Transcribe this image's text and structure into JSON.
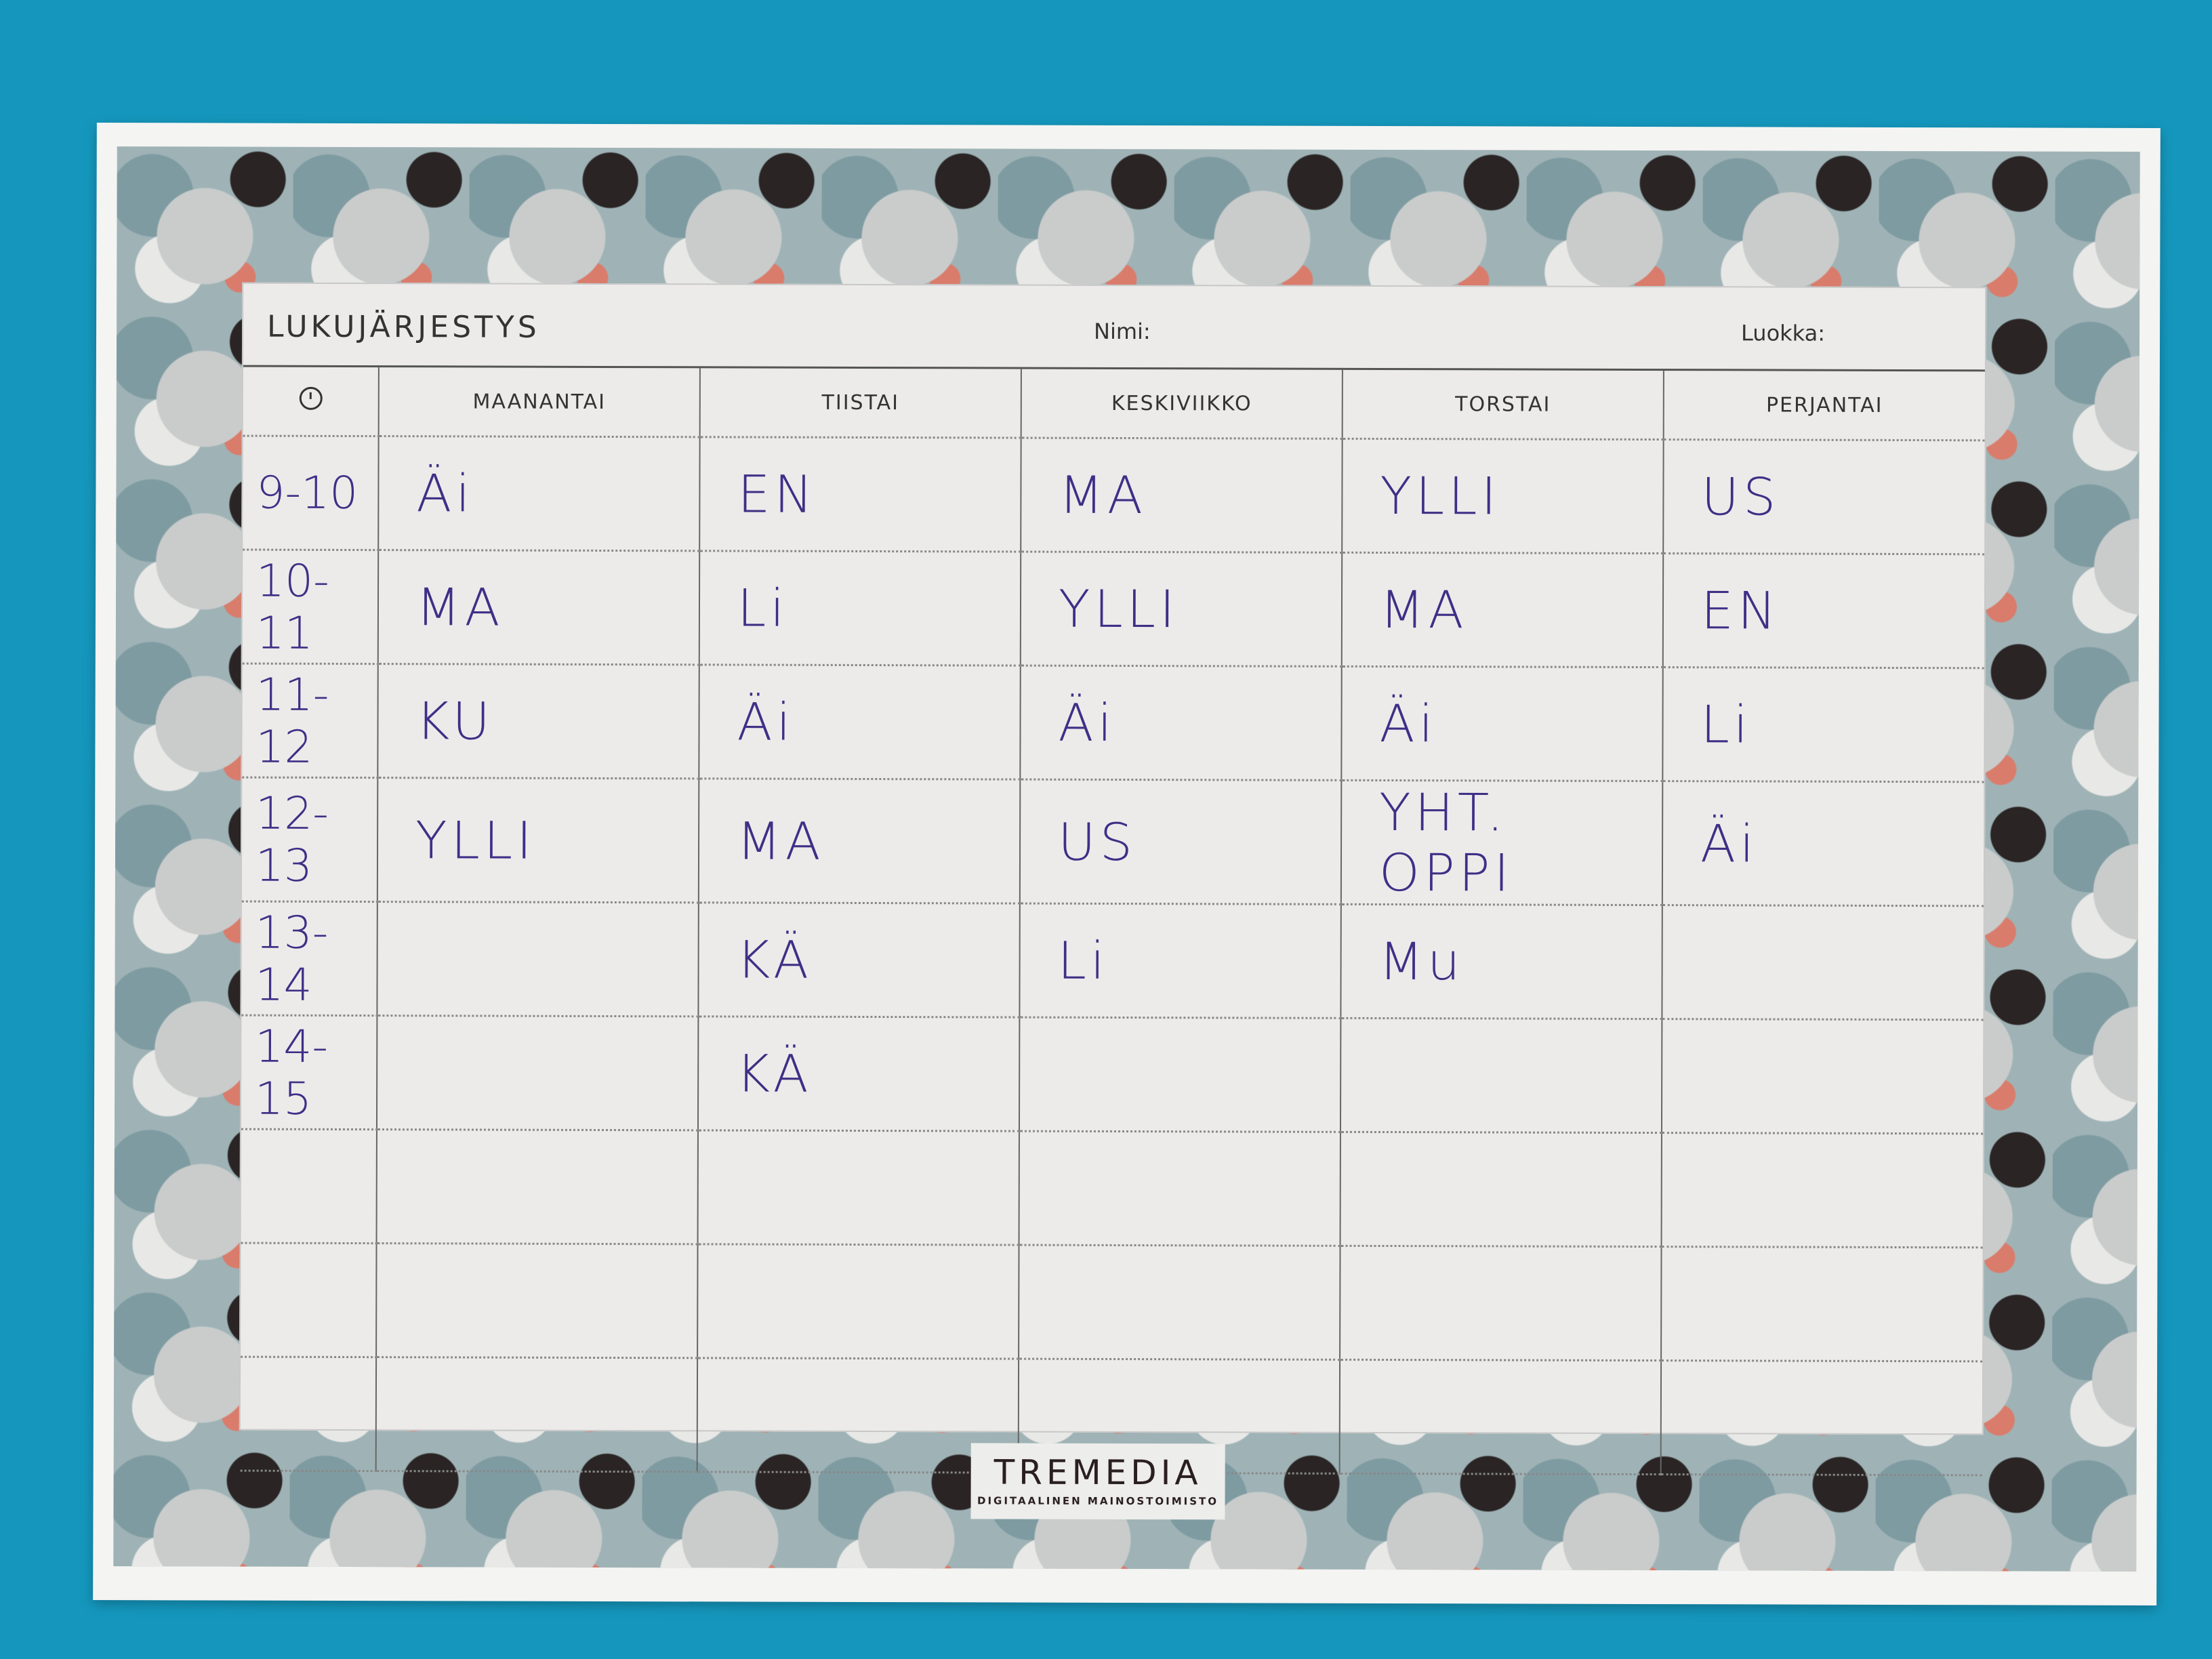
{
  "header": {
    "title": "LUKUJÄRJESTYS",
    "name_label": "Nimi:",
    "class_label": "Luokka:"
  },
  "columns": {
    "time_icon": "clock-icon",
    "days": [
      "MAANANTAI",
      "TIISTAI",
      "KESKIVIIKKO",
      "TORSTAI",
      "PERJANTAI"
    ]
  },
  "rows": [
    {
      "time": "9-10",
      "cells": [
        "Äi",
        "EN",
        "MA",
        "YLLI",
        "US"
      ]
    },
    {
      "time": "10-11",
      "cells": [
        "MA",
        "Li",
        "YLLI",
        "MA",
        "EN"
      ]
    },
    {
      "time": "11-12",
      "cells": [
        "KU",
        "Äi",
        "Äi",
        "Äi",
        "Li"
      ]
    },
    {
      "time": "12-13",
      "cells": [
        "YLLI",
        "MA",
        "US",
        "YHT. OPPI",
        "Äi"
      ]
    },
    {
      "time": "13-14",
      "cells": [
        "",
        "KÄ",
        "Li",
        "Mu",
        ""
      ]
    },
    {
      "time": "14-15",
      "cells": [
        "",
        "KÄ",
        "",
        "",
        ""
      ]
    },
    {
      "time": "",
      "cells": [
        "",
        "",
        "",
        "",
        ""
      ]
    },
    {
      "time": "",
      "cells": [
        "",
        "",
        "",
        "",
        ""
      ]
    },
    {
      "time": "",
      "cells": [
        "",
        "",
        "",
        "",
        ""
      ]
    }
  ],
  "footer": {
    "logo": "TREMEDIA",
    "logo_tagline": "DIGITAALINEN MAINOSTOIMISTO"
  },
  "colors": {
    "background": "#1597bd",
    "ink": "#3f2f86",
    "pattern": "#9fb3b6"
  }
}
